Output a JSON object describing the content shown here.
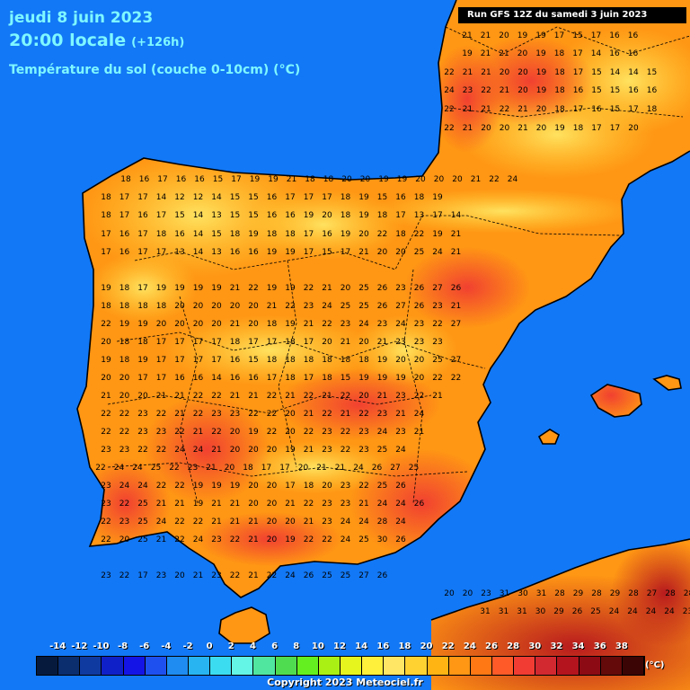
{
  "header": {
    "date": "jeudi 8 juin 2023",
    "time": "20:00 locale",
    "lead": "(+126h)",
    "parameter": "Température du sol (couche 0-10cm) (°C)",
    "run": "Run GFS 12Z du samedi 3 juin 2023"
  },
  "legend": {
    "labels": [
      "-14",
      "-12",
      "-10",
      "-8",
      "-6",
      "-4",
      "-2",
      "0",
      "2",
      "4",
      "6",
      "8",
      "10",
      "12",
      "14",
      "16",
      "18",
      "20",
      "22",
      "24",
      "26",
      "28",
      "30",
      "32",
      "34",
      "36",
      "38"
    ],
    "colors": [
      "#061a3e",
      "#0a2e6e",
      "#0f3aa0",
      "#1020c8",
      "#1414e6",
      "#1e50f0",
      "#1e8cf0",
      "#28b4f0",
      "#3cdcf0",
      "#64f5e6",
      "#50e6a0",
      "#50dc50",
      "#64f020",
      "#aaf014",
      "#e6f51e",
      "#fff03c",
      "#ffe664",
      "#ffd232",
      "#ffb414",
      "#ff9614",
      "#ff7814",
      "#ff5a28",
      "#f03c32",
      "#d22830",
      "#b4141e",
      "#8c0a14",
      "#640a0a",
      "#3c0505"
    ],
    "unit": "(°C)"
  },
  "copyright": "Copyright 2023 Meteociel.fr",
  "map": {
    "sea_color": "#1278f5",
    "border_color": "#000000",
    "land_palette": {
      "warm": "#ff9614",
      "cool": "#ffd232",
      "hot": "#f03c32",
      "veryhot": "#b4141e"
    }
  },
  "grid_values": [
    "21 21 20 19 19 17 15 17 16 16",
    "19 21 21 20 19 18 17 14 16 16",
    "22 21 21 20 20 19 18 17 15 14 14 15",
    "24 23 22 21 20 19 18 16 15 15 16 16",
    "22 21 21 22 21 20 18 17 16 15 17 18",
    "22 21 20 20 21 20 19 18 17 17 20",
    "18 16 17 16 16 15 17 19 19 21 18 18 20 20 19 19 20 20 20 21 22 24",
    "18 17 17 14 12 12 14 15 15 16 17 17 17 18 19 15 16 18 19",
    "18 17 16 17 15 14 13 15 15 16 16 19 20 18 19 18 17 13 17 14",
    "17 16 17 18 16 14 15 18 19 18 18 17 16 19 20 22 18 22 19 21",
    "17 16 17 17 13 14 13 16 16 19 19 17 15 17 21 20 20 25 24 21",
    "19 18 17 19 19 19 19 21 22 19 19 22 21 20 25 26 23 26 27 26",
    "18 18 18 18 20 20 20 20 20 21 22 23 24 25 25 26 27 26 23 21",
    "22 19 19 20 20 20 20 21 20 18 19 21 22 23 24 23 24 23 22 27",
    "20 18 18 17 17 17 17 18 17 17 18 17 20 21 20 21 23 23 23",
    "19 18 19 17 17 17 17 16 15 18 18 18 18 18 18 19 20 20 25 27",
    "20 20 17 17 16 16 14 16 16 17 18 17 18 15 19 19 19 20 22 22",
    "21 20 20 21 21 22 22 21 21 22 21 22 21 22 20 21 23 22 21",
    "22 22 23 22 21 22 23 23 22 22 20 21 22 21 22 23 21 24",
    "22 22 23 23 22 21 22 20 19 22 20 22 23 22 23 24 23 21",
    "23 23 22 22 24 24 21 20 20 20 19 21 23 22 23 25 24",
    "22 24 24 25 22 23 21 20 18 17 17 20 21 21 24 26 27 25",
    "23 24 24 22 22 19 19 19 20 20 17 18 20 23 22 25 26",
    "23 22 25 21 21 19 21 21 20 20 21 22 23 23 21 24 24 26",
    "22 23 25 24 22 22 21 21 21 20 20 21 23 24 24 28 24",
    "22 20 25 21 22 24 23 22 21 20 19 22 22 24 25 30 26",
    "23 22 17 23 20 21 23 22 21 22 24 26 25 25 27 26",
    "20 20 23 31 30 31 28 29 28 29 28 27 28 28 29 29",
    "31 31 31 30 29 26 25 24 24 24 24 23 22 27"
  ]
}
